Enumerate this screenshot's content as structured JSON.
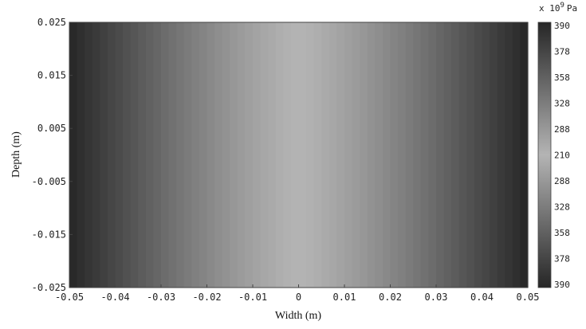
{
  "chart_data": {
    "type": "heatmap",
    "xlabel": "Width (m)",
    "ylabel": "Depth (m)",
    "xlim": [
      -0.05,
      0.05
    ],
    "ylim": [
      -0.025,
      0.025
    ],
    "x_ticks": [
      "-0.05",
      "-0.04",
      "-0.03",
      "-0.02",
      "-0.01",
      "0",
      "0.01",
      "0.02",
      "0.03",
      "0.04",
      "0.05"
    ],
    "y_ticks": [
      "0.025",
      "0.015",
      "0.005",
      "-0.005",
      "-0.015",
      "-0.025"
    ],
    "colorbar": {
      "unit_prefix": "x 10",
      "unit_exponent": "9",
      "unit_suffix": "Pa",
      "labels": [
        "390",
        "378",
        "358",
        "328",
        "288",
        "210",
        "288",
        "328",
        "358",
        "378",
        "390"
      ]
    },
    "gradient": {
      "direction": "horizontal",
      "edge_color": "#262626",
      "center_color": "#b4b4b4",
      "bands": 60
    }
  }
}
